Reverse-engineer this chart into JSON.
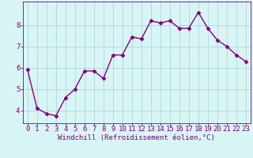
{
  "x": [
    0,
    1,
    2,
    3,
    4,
    5,
    6,
    7,
    8,
    9,
    10,
    11,
    12,
    13,
    14,
    15,
    16,
    17,
    18,
    19,
    20,
    21,
    22,
    23
  ],
  "y": [
    5.9,
    4.1,
    3.85,
    3.75,
    4.6,
    5.0,
    5.85,
    5.85,
    5.5,
    6.6,
    6.6,
    7.45,
    7.35,
    8.2,
    8.1,
    8.2,
    7.85,
    7.85,
    8.6,
    7.85,
    7.3,
    7.0,
    6.6,
    6.3
  ],
  "line_color": "#800080",
  "marker": "D",
  "marker_size": 2.5,
  "line_width": 1.0,
  "xlabel": "Windchill (Refroidissement éolien,°C)",
  "xlabel_color": "#800080",
  "background_color": "#d8f5f5",
  "grid_color": "#b0d8d8",
  "tick_color": "#800080",
  "ylim": [
    3.4,
    9.1
  ],
  "xlim": [
    -0.5,
    23.5
  ],
  "yticks": [
    4,
    5,
    6,
    7,
    8
  ],
  "xticks": [
    0,
    1,
    2,
    3,
    4,
    5,
    6,
    7,
    8,
    9,
    10,
    11,
    12,
    13,
    14,
    15,
    16,
    17,
    18,
    19,
    20,
    21,
    22,
    23
  ],
  "font_size_xlabel": 6.5,
  "font_size_ticks": 6.5
}
